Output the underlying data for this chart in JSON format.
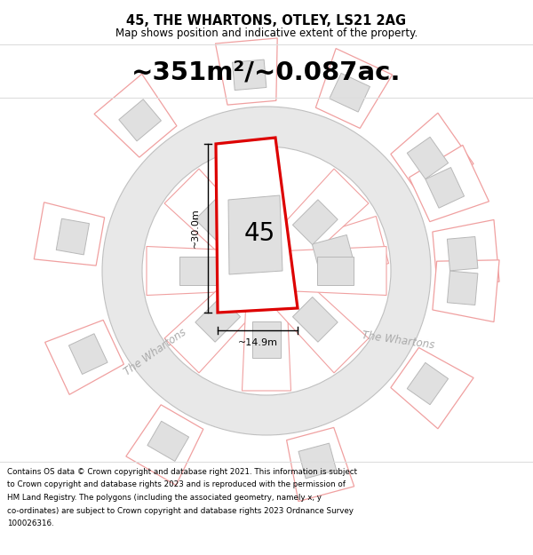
{
  "title": "45, THE WHARTONS, OTLEY, LS21 2AG",
  "subtitle": "Map shows position and indicative extent of the property.",
  "area_text": "~351m²/~0.087ac.",
  "label_45": "45",
  "road_label": "The Whartons",
  "dim_vertical": "~30.0m",
  "dim_horizontal": "~14.9m",
  "footer_lines": [
    "Contains OS data © Crown copyright and database right 2021. This information is subject",
    "to Crown copyright and database rights 2023 and is reproduced with the permission of",
    "HM Land Registry. The polygons (including the associated geometry, namely x, y",
    "co-ordinates) are subject to Crown copyright and database rights 2023 Ordnance Survey",
    "100026316."
  ],
  "bg_color": "#ffffff",
  "plot_color": "#dd0000",
  "plot_fill": "#ffffff",
  "neighbor_stroke": "#f0a0a0",
  "neighbor_fill": "#e8e8e8",
  "plot_stroke": "#c8c8c8",
  "road_fill": "#e8e8e8",
  "road_stroke": "#c0c0c0",
  "text_road": "#aaaaaa",
  "building_fill": "#e0e0e0",
  "building_stroke": "#b8b8b8"
}
